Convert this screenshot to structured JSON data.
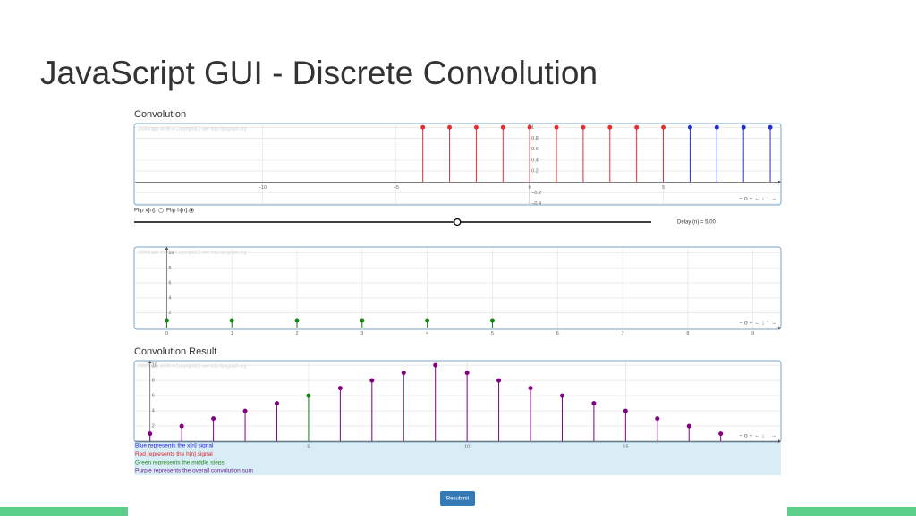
{
  "slide_title": "JavaScript GUI - Discrete Convolution",
  "section_convolution": "Convolution",
  "section_result": "Convolution Result",
  "watermark": "JSXGraph v0.99.4 Copyright(C) see http://jsxgraph.org",
  "navigation": "− o + ← ↓ ↑ →",
  "controls": {
    "flip_x": {
      "label": "Flip x[n]:",
      "checked": false
    },
    "flip_h": {
      "label": "Flip h[n]:",
      "checked": true
    },
    "slider": {
      "min": -10,
      "max": 14,
      "value": 5
    },
    "delay_label": "Delay (n) = 5.00"
  },
  "notes": [
    {
      "text": "Blue represents the x[n] signal",
      "color": "#2222dd"
    },
    {
      "text": "Red represents the h[n] signal",
      "color": "#dd2222"
    },
    {
      "text": "Green represents the middle steps",
      "color": "#228822"
    },
    {
      "text": "Purple represents the overall convolution sum",
      "color": "#662288"
    }
  ],
  "button": "Resubmit",
  "chart_data": [
    {
      "type": "stem",
      "xlim": [
        -14.8,
        9.4
      ],
      "ylim": [
        -0.42,
        1.07
      ],
      "xticks": [
        {
          "value": -10,
          "label": "−10"
        },
        {
          "value": -5,
          "label": "−5"
        },
        0,
        5
      ],
      "yticks": [
        {
          "value": -0.4,
          "label": "−0.4"
        },
        {
          "value": -0.2,
          "label": "−0.2"
        },
        0.2,
        0.4,
        0.6,
        0.8,
        1
      ],
      "grid": true,
      "series": [
        {
          "color": "#e03030",
          "x": [
            -4,
            -3,
            -2,
            -1,
            0,
            1,
            2,
            3,
            4,
            5
          ],
          "values": [
            1,
            1,
            1,
            1,
            1,
            1,
            1,
            1,
            1,
            1
          ]
        },
        {
          "color": "#2030d0",
          "x": [
            6,
            7,
            8,
            9
          ],
          "values": [
            1,
            1,
            1,
            1
          ]
        }
      ]
    },
    {
      "type": "stem",
      "xlim": [
        -0.5,
        9.43
      ],
      "ylim": [
        -0.2,
        10.8
      ],
      "xticks": [
        0,
        1,
        2,
        3,
        4,
        5,
        6,
        7,
        8,
        9
      ],
      "yticks": [
        2,
        4,
        6,
        8,
        10
      ],
      "grid": true,
      "series": [
        {
          "color": "#108010",
          "x": [
            0,
            1,
            2,
            3,
            4,
            5
          ],
          "values": [
            1,
            1,
            1,
            1,
            1,
            1
          ]
        }
      ]
    },
    {
      "type": "stem",
      "xlim": [
        -0.5,
        19.9
      ],
      "ylim": [
        -0.1,
        10.6
      ],
      "xticks": [
        0,
        5,
        10,
        15
      ],
      "yticks": [
        2,
        4,
        6,
        8,
        10
      ],
      "grid": true,
      "series": [
        {
          "color": "#800080",
          "x": [
            0,
            1,
            2,
            3,
            4,
            6,
            7,
            8,
            9,
            10,
            11,
            12,
            13,
            14,
            15,
            16,
            17,
            18
          ],
          "values": [
            1,
            2,
            3,
            4,
            5,
            7,
            8,
            9,
            10,
            9,
            8,
            7,
            6,
            5,
            4,
            3,
            2,
            1
          ]
        },
        {
          "color": "#108010",
          "x": [
            5
          ],
          "values": [
            6
          ]
        }
      ]
    }
  ]
}
